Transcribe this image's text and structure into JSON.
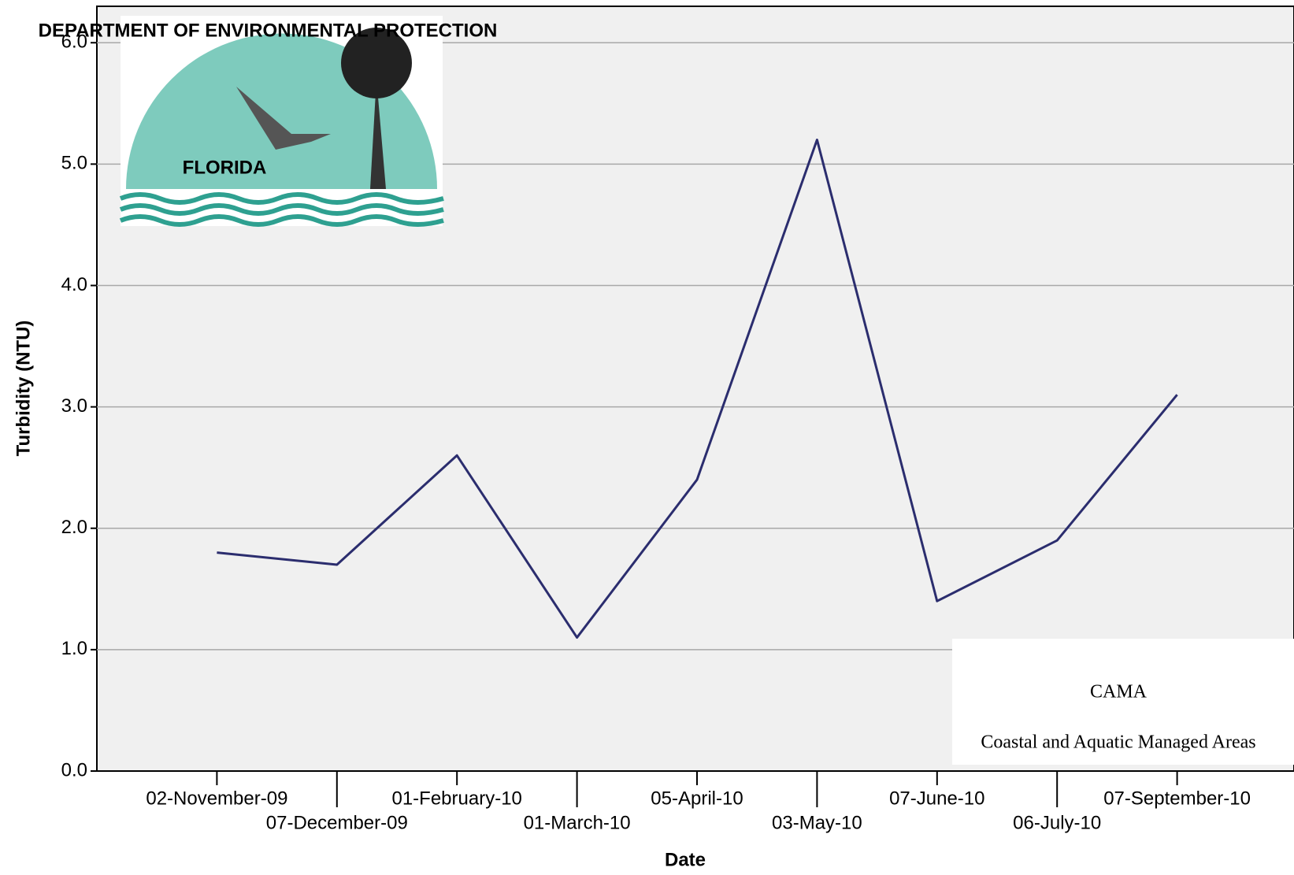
{
  "chart_data": {
    "type": "line",
    "x_label": "Date",
    "y_label": "Turbidity (NTU)",
    "categories": [
      "02-November-09",
      "07-December-09",
      "01-February-10",
      "01-March-10",
      "05-April-10",
      "03-May-10",
      "07-June-10",
      "06-July-10",
      "07-September-10"
    ],
    "series": [
      {
        "name": "Turbidity",
        "color": "#2b2d6e",
        "values": [
          1.8,
          1.7,
          2.6,
          1.1,
          2.4,
          5.2,
          1.4,
          1.9,
          3.1
        ]
      }
    ],
    "ylim": [
      0,
      6.3
    ],
    "yticks": [
      {
        "value": 0,
        "label": "0.0"
      },
      {
        "value": 1,
        "label": "1.0"
      },
      {
        "value": 2,
        "label": "2.0"
      },
      {
        "value": 3,
        "label": "3.0"
      },
      {
        "value": 4,
        "label": "4.0"
      },
      {
        "value": 5,
        "label": "5.0"
      },
      {
        "value": 6,
        "label": "6.0"
      }
    ],
    "grid": true,
    "annotations": [
      "DEPARTMENT OF ENVIRONMENTAL PROTECTION",
      "FLORIDA",
      "CAMA",
      "Coastal and Aquatic Managed Areas"
    ]
  }
}
